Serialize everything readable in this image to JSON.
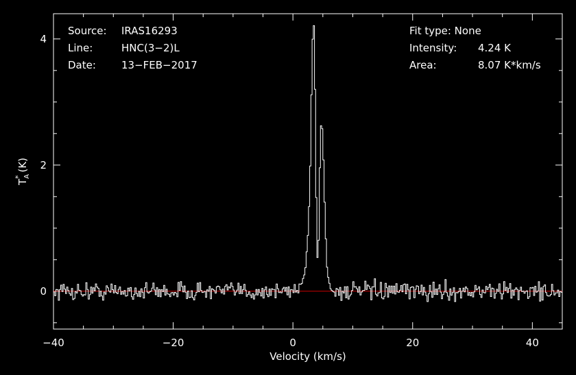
{
  "info": {
    "source_label": "Source:",
    "source_value": "IRAS16293",
    "line_label": "Line:",
    "line_value": "HNC(3−2)L",
    "date_label": "Date:",
    "date_value": "13−FEB−2017",
    "fit_type": "Fit type: None",
    "intensity_label": "Intensity:",
    "intensity_value": "4.24 K",
    "area_label": "Area:",
    "area_value": "8.07 K*km/s"
  },
  "chart_data": {
    "type": "line",
    "title": "",
    "xlabel": "Velocity (km/s)",
    "ylabel": "T*A (K)",
    "xlim": [
      -40,
      45
    ],
    "ylim": [
      -0.6,
      4.4
    ],
    "xticks": [
      -40,
      -20,
      0,
      20,
      40
    ],
    "xtick_labels": [
      "−40",
      "−20",
      "0",
      "20",
      "40"
    ],
    "yticks": [
      0,
      2,
      4
    ],
    "ytick_labels": [
      "0",
      "2",
      "4"
    ],
    "baseline": 0,
    "grid": false,
    "series": [
      {
        "name": "",
        "step": true,
        "x": [
          1.0,
          1.5,
          2.0,
          2.5,
          2.8,
          3.0,
          3.2,
          3.4,
          3.6,
          3.8,
          4.0,
          4.2,
          4.4,
          4.6,
          4.8,
          5.0,
          5.2,
          5.4,
          5.6,
          5.8,
          6.0,
          6.3,
          6.6,
          7.0
        ],
        "y": [
          0.1,
          0.2,
          0.4,
          1.0,
          2.0,
          3.1,
          4.0,
          4.25,
          3.2,
          1.5,
          0.5,
          0.8,
          2.0,
          2.6,
          2.6,
          2.1,
          1.4,
          0.8,
          0.4,
          0.25,
          0.15,
          0.05,
          -0.05,
          0.0
        ],
        "noise_rms": 0.1,
        "color": "#ffffff"
      }
    ],
    "baseline_color": "#cc0000",
    "axis_color": "#ffffff"
  }
}
